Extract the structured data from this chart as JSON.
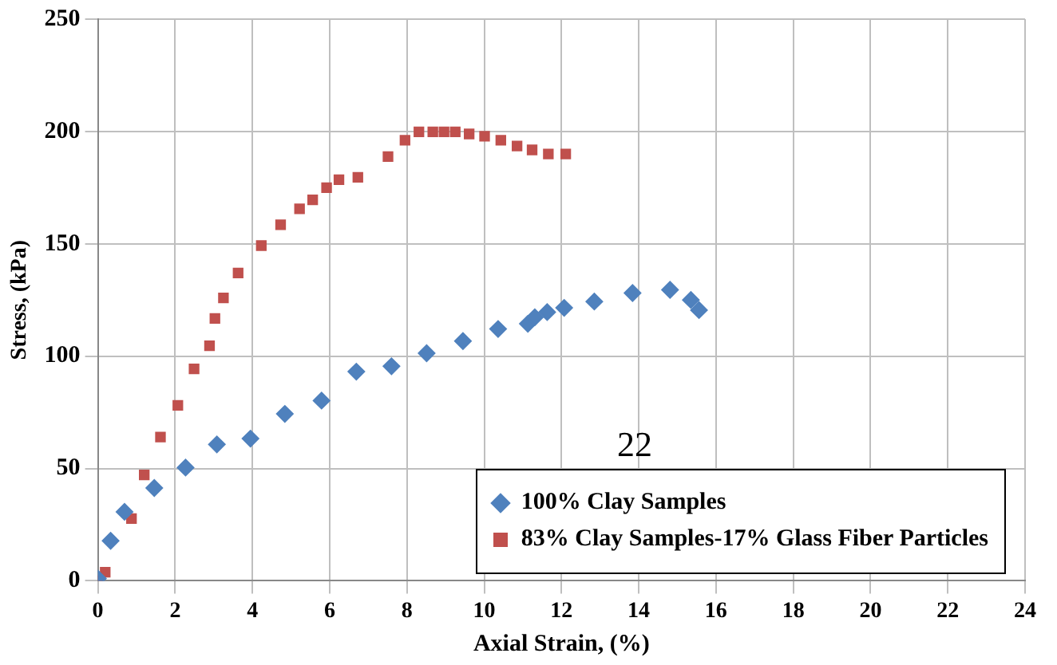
{
  "chart_data": {
    "type": "scatter",
    "xlabel": "Axial Strain, (%)",
    "ylabel": "Stress, (kPa)",
    "xlim": [
      0,
      24
    ],
    "xticks": [
      0,
      2,
      4,
      6,
      8,
      10,
      12,
      14,
      16,
      18,
      20,
      22,
      24
    ],
    "ylim": [
      0,
      250
    ],
    "yticks": [
      0,
      50,
      100,
      150,
      200,
      250
    ],
    "grid": true,
    "legend": "bottom right",
    "annotations": [
      "22"
    ],
    "series": [
      {
        "name": "100% Clay Samples",
        "color": "#4f81bd",
        "marker": "diamond",
        "x": [
          0,
          0.33,
          0.69,
          1.46,
          2.27,
          3.08,
          3.95,
          4.84,
          5.79,
          6.69,
          7.6,
          8.51,
          9.45,
          10.36,
          11.13,
          11.31,
          11.63,
          12.07,
          12.85,
          13.84,
          14.81,
          15.35,
          15.56
        ],
        "values": [
          1,
          17.8,
          30.7,
          41.3,
          50.4,
          60.7,
          63.3,
          74.3,
          80.2,
          93.1,
          95.5,
          101.3,
          106.7,
          112.1,
          114.4,
          117.3,
          119.6,
          121.5,
          124.3,
          128.1,
          129.5,
          125,
          120.5
        ]
      },
      {
        "name": "83% Clay Samples-17% Glass Fiber Particles",
        "color": "#c0504d",
        "marker": "square",
        "x": [
          0,
          0.19,
          0.87,
          1.2,
          1.62,
          2.07,
          2.49,
          2.89,
          3.03,
          3.25,
          3.63,
          4.23,
          4.73,
          5.22,
          5.56,
          5.92,
          6.24,
          6.73,
          7.51,
          7.95,
          8.31,
          8.67,
          8.96,
          9.25,
          9.61,
          10.01,
          10.43,
          10.85,
          11.24,
          11.66,
          12.11
        ],
        "values": [
          0,
          3.8,
          27.7,
          47.1,
          64,
          78.1,
          94.3,
          104.6,
          116.8,
          125.9,
          137,
          149.2,
          158.5,
          165.6,
          169.6,
          175,
          178.5,
          179.6,
          188.8,
          196.1,
          199.8,
          199.8,
          199.8,
          199.8,
          198.9,
          197.9,
          196.1,
          193.5,
          191.8,
          190,
          190
        ]
      }
    ]
  }
}
